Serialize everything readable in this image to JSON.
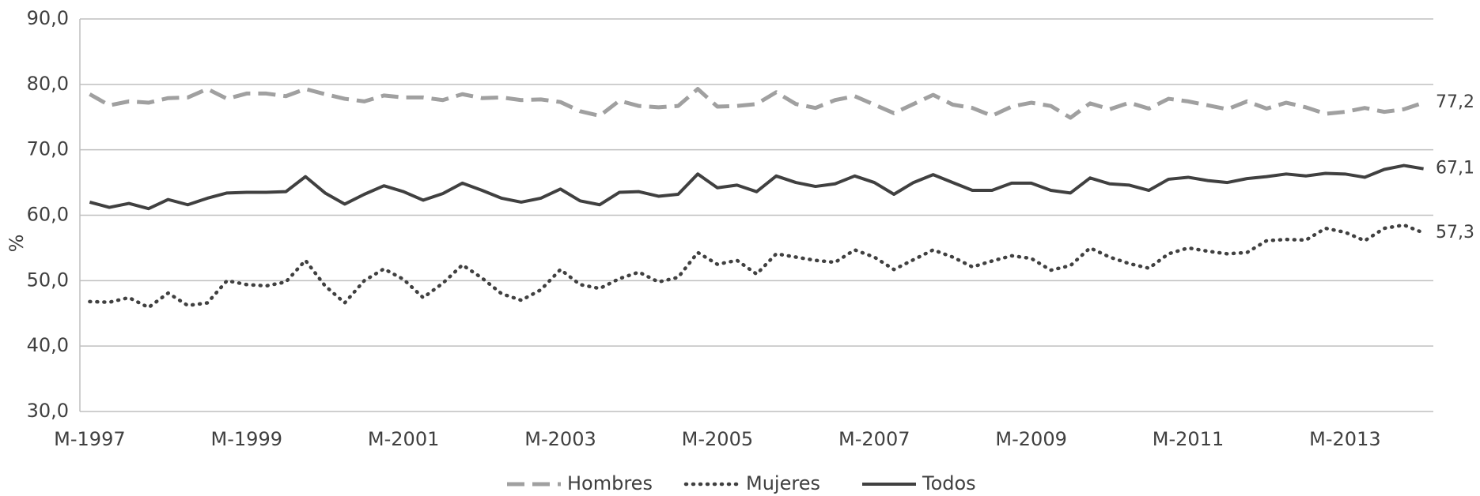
{
  "chart_data": {
    "type": "line",
    "ylabel": "%",
    "categories": [
      "M-1997",
      null,
      null,
      null,
      null,
      null,
      null,
      null,
      "M-1999",
      null,
      null,
      null,
      null,
      null,
      null,
      null,
      "M-2001",
      null,
      null,
      null,
      null,
      null,
      null,
      null,
      "M-2003",
      null,
      null,
      null,
      null,
      null,
      null,
      null,
      "M-2005",
      null,
      null,
      null,
      null,
      null,
      null,
      null,
      "M-2007",
      null,
      null,
      null,
      null,
      null,
      null,
      null,
      "M-2009",
      null,
      null,
      null,
      null,
      null,
      null,
      null,
      "M-2011",
      null,
      null,
      null,
      null,
      null,
      null,
      null,
      "M-2013",
      null,
      null,
      null,
      null
    ],
    "ylim": [
      30,
      90
    ],
    "yticks": [
      {
        "value": 30,
        "label": "30,0"
      },
      {
        "value": 40,
        "label": "40,0"
      },
      {
        "value": 50,
        "label": "50,0"
      },
      {
        "value": 60,
        "label": "60,0"
      },
      {
        "value": 70,
        "label": "70,0"
      },
      {
        "value": 80,
        "label": "80,0"
      },
      {
        "value": 90,
        "label": "90,0"
      }
    ],
    "grid": true,
    "legend": "bottom",
    "series": [
      {
        "name": "Hombres",
        "color": "#a0a0a0",
        "style": "dashed",
        "end_label": "77,2",
        "values": [
          78.5,
          76.8,
          77.4,
          77.2,
          77.9,
          78.0,
          79.3,
          77.8,
          78.6,
          78.6,
          78.2,
          79.3,
          78.5,
          77.8,
          77.4,
          78.3,
          78.0,
          78.0,
          77.6,
          78.5,
          77.9,
          78.0,
          77.6,
          77.7,
          77.3,
          75.9,
          75.2,
          77.5,
          76.7,
          76.5,
          76.7,
          79.3,
          76.6,
          76.7,
          77.0,
          78.8,
          77.0,
          76.4,
          77.6,
          78.2,
          76.9,
          75.6,
          77.0,
          78.4,
          76.9,
          76.4,
          75.2,
          76.6,
          77.2,
          76.7,
          74.9,
          77.1,
          76.2,
          77.2,
          76.3,
          77.8,
          77.4,
          76.8,
          76.2,
          77.4,
          76.3,
          77.2,
          76.5,
          75.5,
          75.8,
          76.4,
          75.8,
          76.2,
          77.2
        ]
      },
      {
        "name": "Mujeres",
        "color": "#404040",
        "style": "dotted",
        "end_label": "57,3",
        "values": [
          46.8,
          46.7,
          47.4,
          45.9,
          48.1,
          46.2,
          46.6,
          50.0,
          49.4,
          49.2,
          49.8,
          53.1,
          49.2,
          46.6,
          50.0,
          51.8,
          50.2,
          47.4,
          49.6,
          52.4,
          50.4,
          48.0,
          47.0,
          48.6,
          51.7,
          49.4,
          48.8,
          50.3,
          51.3,
          49.8,
          50.5,
          54.3,
          52.5,
          53.1,
          51.0,
          54.1,
          53.6,
          53.1,
          52.8,
          54.7,
          53.6,
          51.7,
          53.2,
          54.7,
          53.6,
          52.1,
          53.0,
          53.8,
          53.4,
          51.6,
          52.3,
          55.0,
          53.6,
          52.6,
          51.9,
          54.1,
          55.0,
          54.5,
          54.1,
          54.3,
          56.1,
          56.3,
          56.2,
          58.0,
          57.4,
          56.1,
          58.0,
          58.5,
          57.3
        ]
      },
      {
        "name": "Todos",
        "color": "#404040",
        "style": "solid",
        "end_label": "67,1",
        "values": [
          62.0,
          61.2,
          61.8,
          61.0,
          62.4,
          61.6,
          62.6,
          63.4,
          63.5,
          63.5,
          63.6,
          65.9,
          63.4,
          61.7,
          63.2,
          64.5,
          63.6,
          62.3,
          63.3,
          64.9,
          63.8,
          62.6,
          62.0,
          62.6,
          64.0,
          62.2,
          61.6,
          63.5,
          63.6,
          62.9,
          63.2,
          66.3,
          64.2,
          64.6,
          63.6,
          66.0,
          65.0,
          64.4,
          64.8,
          66.0,
          65.0,
          63.2,
          65.0,
          66.2,
          65.0,
          63.8,
          63.8,
          64.9,
          64.9,
          63.8,
          63.4,
          65.7,
          64.8,
          64.6,
          63.8,
          65.5,
          65.8,
          65.3,
          65.0,
          65.6,
          65.9,
          66.3,
          66.0,
          66.4,
          66.3,
          65.8,
          67.0,
          67.6,
          67.1
        ]
      }
    ]
  }
}
